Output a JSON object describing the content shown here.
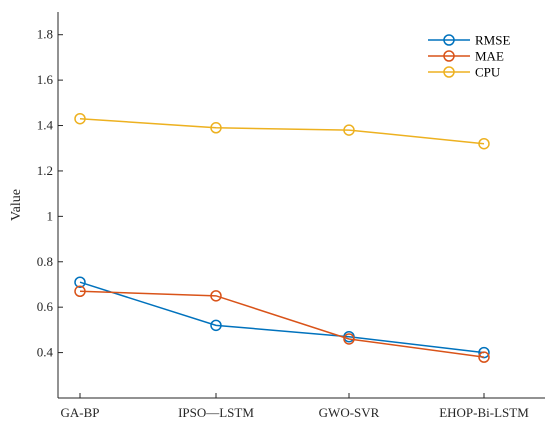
{
  "chart_data": {
    "type": "line",
    "categories": [
      "GA-BP",
      "IPSO—LSTM",
      "GWO-SVR",
      "EHOP-Bi-LSTM"
    ],
    "ylabel": "Value",
    "xlabel": "",
    "ylim": [
      0.2,
      1.9
    ],
    "yticks": [
      0.4,
      0.6,
      0.8,
      1,
      1.2,
      1.4,
      1.6,
      1.8
    ],
    "ytick_labels": [
      "0.4",
      "0.6",
      "0.8",
      "1",
      "1.2",
      "1.4",
      "1.6",
      "1.8"
    ],
    "legend_position": "top-right",
    "marker": "circle",
    "series": [
      {
        "name": "RMSE",
        "color": "#0072BD",
        "values": [
          0.71,
          0.52,
          0.47,
          0.4
        ]
      },
      {
        "name": "MAE",
        "color": "#D95319",
        "values": [
          0.67,
          0.65,
          0.46,
          0.38
        ]
      },
      {
        "name": "CPU",
        "color": "#EDB120",
        "values": [
          1.43,
          1.39,
          1.38,
          1.32
        ]
      }
    ]
  }
}
